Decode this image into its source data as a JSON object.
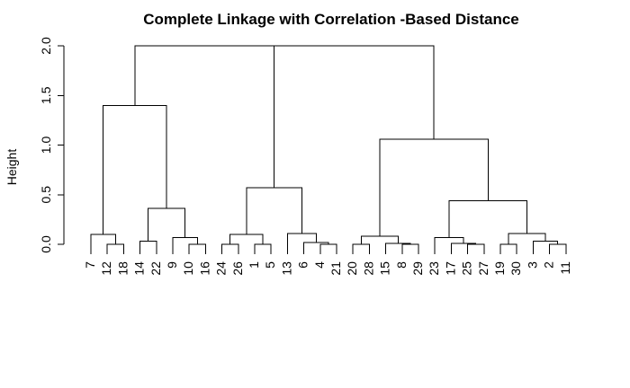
{
  "chart_data": {
    "type": "dendrogram",
    "title": "Complete Linkage with Correlation -Based Distance",
    "ylabel": "Height",
    "xlabel": "",
    "ylim": [
      0,
      2.0
    ],
    "yticks": [
      "0.0",
      "0.5",
      "1.0",
      "1.5",
      "2.0"
    ],
    "leaf_order": [
      "7",
      "12",
      "18",
      "14",
      "22",
      "9",
      "10",
      "16",
      "24",
      "26",
      "1",
      "5",
      "13",
      "6",
      "4",
      "21",
      "20",
      "28",
      "15",
      "8",
      "29",
      "23",
      "17",
      "25",
      "27",
      "19",
      "30",
      "3",
      "2",
      "11"
    ],
    "merges": [
      {
        "left": "12",
        "right": "18",
        "height": 0.0
      },
      {
        "left": "L7",
        "right": "12+18",
        "height": 0.1
      },
      {
        "left": "14",
        "right": "22",
        "height": 0.03
      },
      {
        "left": "10",
        "right": "16",
        "height": 0.0
      },
      {
        "left": "9",
        "right": "10+16",
        "height": 0.07
      },
      {
        "left": "14+22",
        "right": "9+10+16",
        "height": 0.36
      },
      {
        "left": "7+12+18",
        "right": "14+22+9+10+16",
        "height": 1.4
      },
      {
        "left": "24",
        "right": "26",
        "height": 0.0
      },
      {
        "left": "1",
        "right": "5",
        "height": 0.0
      },
      {
        "left": "24+26",
        "right": "1+5",
        "height": 0.1
      },
      {
        "left": "4",
        "right": "21",
        "height": 0.0
      },
      {
        "left": "6",
        "right": "4+21",
        "height": 0.02
      },
      {
        "left": "13",
        "right": "6+4+21",
        "height": 0.11
      },
      {
        "left": "24+26+1+5",
        "right": "13+6+4+21",
        "height": 0.57
      },
      {
        "left": "20",
        "right": "28",
        "height": 0.0
      },
      {
        "left": "8",
        "right": "29",
        "height": 0.0
      },
      {
        "left": "15",
        "right": "8+29",
        "height": 0.01
      },
      {
        "left": "20+28",
        "right": "15+8+29",
        "height": 0.08
      },
      {
        "left": "25",
        "right": "27",
        "height": 0.0
      },
      {
        "left": "17",
        "right": "25+27",
        "height": 0.01
      },
      {
        "left": "23",
        "right": "17+25+27",
        "height": 0.07
      },
      {
        "left": "19",
        "right": "30",
        "height": 0.0
      },
      {
        "left": "2",
        "right": "11",
        "height": 0.0
      },
      {
        "left": "3",
        "right": "2+11",
        "height": 0.03
      },
      {
        "left": "19+30",
        "right": "3+2+11",
        "height": 0.11
      },
      {
        "left": "23+17+25+27",
        "right": "19+30+3+2+11",
        "height": 0.44
      },
      {
        "left": "20+28+15+8+29",
        "right": "23+...+11",
        "height": 1.06
      },
      {
        "left": "24+...+21",
        "right": "20+...+11",
        "height": 2.0
      },
      {
        "left": "7+...+16",
        "right": "24+...+11",
        "height": 2.0
      }
    ],
    "grid": false,
    "legend": "none"
  }
}
